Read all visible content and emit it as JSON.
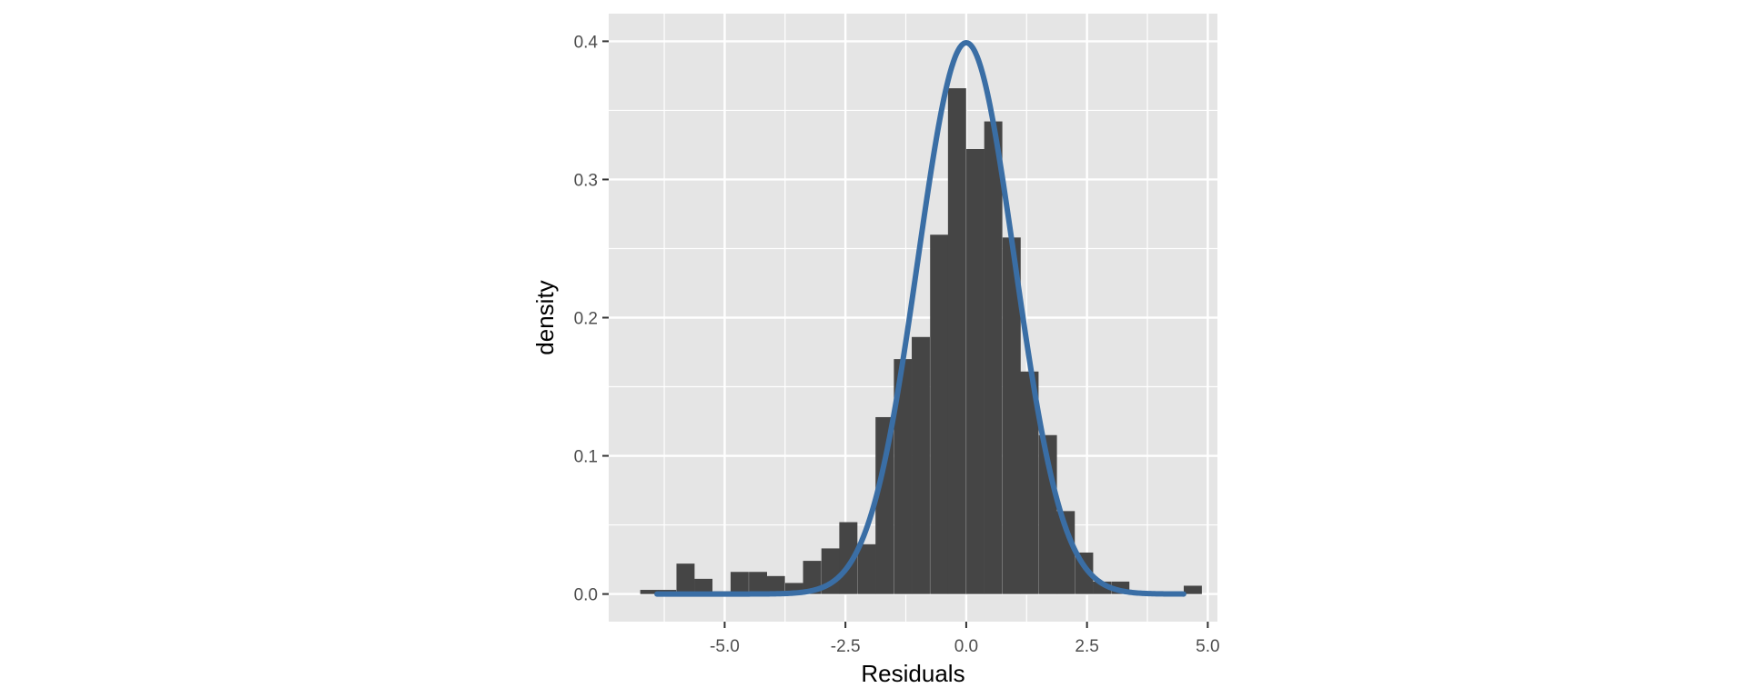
{
  "chart_data": {
    "type": "bar",
    "xlabel": "Residuals",
    "ylabel": "density",
    "xlim": [
      -7.4,
      5.2
    ],
    "ylim": [
      -0.02,
      0.42
    ],
    "x_ticks": [
      -5.0,
      -2.5,
      0.0,
      2.5,
      5.0
    ],
    "x_tick_labels": [
      "-5.0",
      "-2.5",
      "0.0",
      "2.5",
      "5.0"
    ],
    "y_ticks": [
      0.0,
      0.1,
      0.2,
      0.3,
      0.4
    ],
    "y_tick_labels": [
      "0.0",
      "0.1",
      "0.2",
      "0.3",
      "0.4"
    ],
    "grid": true,
    "histogram": {
      "bin_width": 0.375,
      "bins": [
        {
          "x": -6.56,
          "density": 0.003
        },
        {
          "x": -6.19,
          "density": 0.003
        },
        {
          "x": -5.81,
          "density": 0.022
        },
        {
          "x": -5.44,
          "density": 0.011
        },
        {
          "x": -5.06,
          "density": 0.002
        },
        {
          "x": -4.69,
          "density": 0.016
        },
        {
          "x": -4.31,
          "density": 0.016
        },
        {
          "x": -3.94,
          "density": 0.013
        },
        {
          "x": -3.56,
          "density": 0.008
        },
        {
          "x": -3.19,
          "density": 0.024
        },
        {
          "x": -2.81,
          "density": 0.033
        },
        {
          "x": -2.44,
          "density": 0.052
        },
        {
          "x": -2.06,
          "density": 0.036
        },
        {
          "x": -1.69,
          "density": 0.128
        },
        {
          "x": -1.31,
          "density": 0.17
        },
        {
          "x": -0.94,
          "density": 0.186
        },
        {
          "x": -0.56,
          "density": 0.26
        },
        {
          "x": -0.19,
          "density": 0.366
        },
        {
          "x": 0.19,
          "density": 0.322
        },
        {
          "x": 0.56,
          "density": 0.342
        },
        {
          "x": 0.94,
          "density": 0.258
        },
        {
          "x": 1.31,
          "density": 0.161
        },
        {
          "x": 1.69,
          "density": 0.115
        },
        {
          "x": 2.06,
          "density": 0.06
        },
        {
          "x": 2.44,
          "density": 0.03
        },
        {
          "x": 2.81,
          "density": 0.009
        },
        {
          "x": 3.19,
          "density": 0.009
        },
        {
          "x": 3.56,
          "density": 0.002
        },
        {
          "x": 3.94,
          "density": 0.001
        },
        {
          "x": 4.31,
          "density": 0.001
        },
        {
          "x": 4.69,
          "density": 0.006
        }
      ]
    },
    "curve": {
      "type": "line",
      "distribution": "normal",
      "mean": 0.0,
      "sd": 1.0,
      "x_range": [
        -6.4,
        4.5
      ]
    },
    "colors": {
      "panel_background": "#e5e5e5",
      "grid": "#ffffff",
      "bars": "#454545",
      "curve": "#3a6ea5",
      "tick_text": "#4d4d4d",
      "tick_marks": "#333333"
    }
  }
}
